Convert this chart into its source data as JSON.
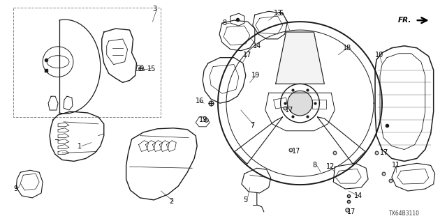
{
  "background_color": "#f5f5f5",
  "figsize": [
    6.4,
    3.2
  ],
  "dpi": 100,
  "part_number_code": "TX64B3110",
  "image_b64": ""
}
